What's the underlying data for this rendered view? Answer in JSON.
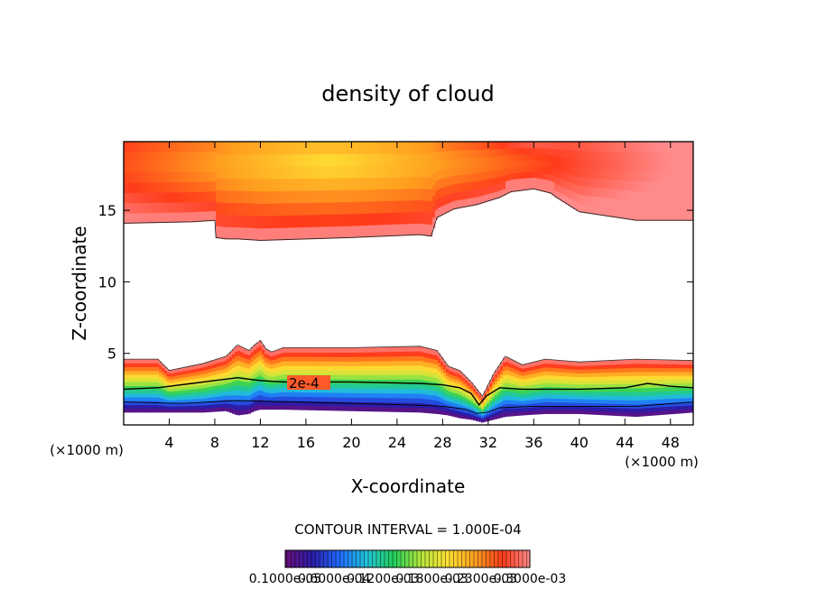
{
  "chart_data": {
    "type": "heatmap",
    "title": "density of cloud",
    "xlabel": "X-coordinate",
    "ylabel": "Z-coordinate",
    "x_unit_left": "(×1000 m)",
    "x_unit_right": "(×1000 m)",
    "xlim": [
      0,
      50
    ],
    "ylim": [
      0,
      19.8
    ],
    "x_ticks": [
      "4",
      "8",
      "12",
      "16",
      "20",
      "24",
      "28",
      "32",
      "36",
      "40",
      "44",
      "48"
    ],
    "x_tick_values": [
      4,
      8,
      12,
      16,
      20,
      24,
      28,
      32,
      36,
      40,
      44,
      48
    ],
    "y_ticks": [
      "5",
      "10",
      "15"
    ],
    "y_tick_values": [
      5,
      10,
      15
    ],
    "contour_label": "2e-4",
    "contour_label_position": [
      14.5,
      2.9
    ],
    "contour_interval_text": "CONTOUR INTERVAL = 1.000E-04",
    "colorbar_labels": [
      "0.1000e-05",
      "0.6000e-04",
      "0.1200e-03",
      "0.1800e-03",
      "0.2300e-03",
      "0.3000e-03"
    ],
    "colormap": [
      "#6a0f7a",
      "#2b1ca8",
      "#1f6bff",
      "#22c3d8",
      "#22cf5a",
      "#b4e63c",
      "#ffe033",
      "#ff9d1f",
      "#ff3b1a",
      "#ff8a8a"
    ],
    "upper_layer": {
      "x": [
        0,
        6,
        8,
        8.1,
        9,
        10,
        12,
        20,
        26,
        27,
        27.5,
        29,
        31,
        33,
        34,
        36,
        37.5,
        38,
        40,
        45,
        50
      ],
      "bottom": [
        14.1,
        14.2,
        14.3,
        13.1,
        13.0,
        13.0,
        12.9,
        13.1,
        13.3,
        13.2,
        14.5,
        15.1,
        15.4,
        15.9,
        16.3,
        16.5,
        16.2,
        15.9,
        14.9,
        14.3,
        14.3
      ],
      "top": 19.8,
      "core_x": 18,
      "core_z": 18.3
    },
    "lower_layer": {
      "x": [
        0,
        3,
        4,
        7,
        9,
        10,
        11,
        11.5,
        12,
        12.5,
        13,
        14,
        20,
        26,
        27.5,
        28.5,
        29.5,
        30.5,
        31.5,
        32.5,
        33.5,
        35,
        37,
        40,
        45,
        50
      ],
      "top": [
        4.6,
        4.6,
        3.8,
        4.3,
        4.8,
        5.6,
        5.2,
        5.6,
        5.9,
        5.3,
        5.1,
        5.4,
        5.4,
        5.5,
        5.2,
        4.1,
        3.8,
        3.0,
        2.0,
        3.6,
        4.8,
        4.2,
        4.6,
        4.4,
        4.6,
        4.5
      ],
      "bottom": [
        0.9,
        0.9,
        0.9,
        0.9,
        1.0,
        0.7,
        0.8,
        1.0,
        1.1,
        1.1,
        1.1,
        1.1,
        1.0,
        0.9,
        0.8,
        0.7,
        0.5,
        0.4,
        0.2,
        0.4,
        0.6,
        0.7,
        0.8,
        0.8,
        0.6,
        0.9
      ]
    },
    "contour_2e4": {
      "x": [
        0,
        3,
        6,
        8,
        10,
        11,
        12,
        14,
        20,
        26,
        28,
        29.5,
        30.5,
        31.2,
        31.8,
        33,
        35,
        40,
        44,
        46,
        48,
        50
      ],
      "z": [
        2.5,
        2.6,
        2.9,
        3.1,
        3.3,
        3.2,
        3.1,
        3.0,
        3.0,
        2.9,
        2.8,
        2.6,
        2.2,
        1.4,
        2.0,
        2.6,
        2.5,
        2.5,
        2.6,
        2.9,
        2.7,
        2.6
      ]
    },
    "contour_low": {
      "x": [
        0,
        5,
        10,
        15,
        20,
        25,
        28,
        30,
        31,
        32,
        33,
        36,
        40,
        45,
        50
      ],
      "z": [
        1.6,
        1.5,
        1.7,
        1.6,
        1.5,
        1.4,
        1.3,
        1.1,
        0.8,
        0.9,
        1.2,
        1.3,
        1.3,
        1.3,
        1.6
      ]
    }
  }
}
